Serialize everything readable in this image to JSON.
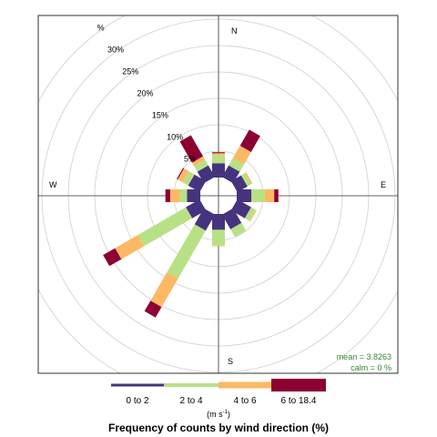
{
  "chart_data": {
    "type": "windrose",
    "title": "Frequency of counts by wind direction (%)",
    "units_label": "(m s",
    "units_exponent": "-1",
    "units_close": ")",
    "compass": [
      "N",
      "E",
      "S",
      "W"
    ],
    "ring_labels": [
      "5%",
      "10%",
      "15%",
      "20%",
      "25%",
      "30%",
      "%"
    ],
    "rings": [
      5,
      10,
      15,
      20,
      25,
      30,
      35
    ],
    "stats": {
      "mean": "mean  =  3.8263",
      "calm": "calm  =  0 %"
    },
    "bins": [
      {
        "name": "0 to 2",
        "color": "#46337e"
      },
      {
        "name": "2 to 4",
        "color": "#b8e186"
      },
      {
        "name": "4 to 6",
        "color": "#fdb863"
      },
      {
        "name": "6 to 18.4",
        "color": "#8c0034"
      }
    ],
    "directions": [
      0,
      30,
      60,
      90,
      120,
      150,
      180,
      210,
      240,
      270,
      300,
      330
    ],
    "sectors": [
      {
        "dir": 0,
        "values": [
          2.7,
          1.6,
          0.3,
          0.2
        ]
      },
      {
        "dir": 30,
        "values": [
          2.5,
          1.6,
          2.7,
          3.5
        ]
      },
      {
        "dir": 60,
        "values": [
          2.2,
          0.8,
          0.3,
          0.0
        ]
      },
      {
        "dir": 90,
        "values": [
          2.8,
          2.5,
          1.8,
          0.8
        ]
      },
      {
        "dir": 120,
        "values": [
          3.0,
          1.0,
          0.2,
          0.0
        ]
      },
      {
        "dir": 150,
        "values": [
          3.2,
          1.7,
          0.0,
          0.0
        ]
      },
      {
        "dir": 180,
        "values": [
          3.0,
          3.0,
          0.1,
          0.0
        ]
      },
      {
        "dir": 210,
        "values": [
          3.5,
          10.5,
          6.2,
          2.3
        ]
      },
      {
        "dir": 240,
        "values": [
          3.0,
          10.5,
          5.0,
          2.6
        ]
      },
      {
        "dir": 270,
        "values": [
          2.5,
          1.4,
          1.8,
          0.9
        ]
      },
      {
        "dir": 300,
        "values": [
          2.5,
          1.2,
          1.1,
          0.2
        ]
      },
      {
        "dir": 330,
        "values": [
          2.5,
          1.2,
          0.8,
          4.6
        ]
      }
    ]
  }
}
